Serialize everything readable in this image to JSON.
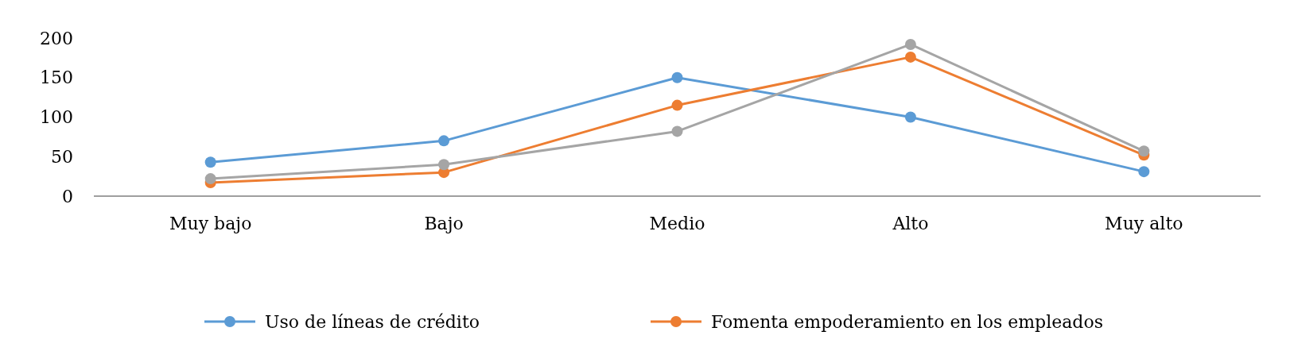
{
  "chart_data": {
    "type": "line",
    "categories": [
      "Muy bajo",
      "Bajo",
      "Medio",
      "Alto",
      "Muy alto"
    ],
    "series": [
      {
        "name": "Uso de líneas de crédito",
        "color": "#5b9bd5",
        "values": [
          43,
          70,
          150,
          100,
          31
        ]
      },
      {
        "name": "Fomenta empoderamiento en los empleados",
        "color": "#ed7d31",
        "values": [
          17,
          30,
          115,
          176,
          52
        ]
      },
      {
        "color": "#a5a5a5",
        "values": [
          22,
          40,
          82,
          192,
          57
        ]
      }
    ],
    "ylim": [
      0,
      200
    ],
    "yticks": [
      0,
      50,
      100,
      150,
      200
    ],
    "legend": "bottom",
    "marker": "circle",
    "line_style": "solid"
  }
}
